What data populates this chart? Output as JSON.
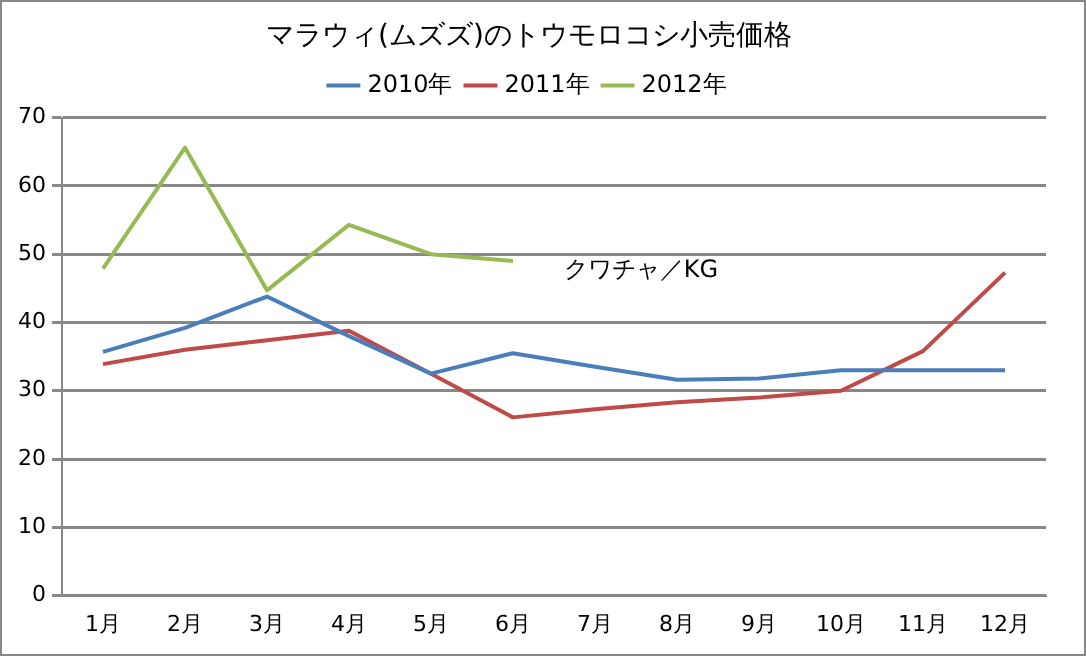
{
  "chart_data": {
    "type": "line",
    "title": "マラウィ(ムズズ)のトウモロコシ小売価格",
    "categories": [
      "1月",
      "2月",
      "3月",
      "4月",
      "5月",
      "6月",
      "7月",
      "8月",
      "9月",
      "10月",
      "11月",
      "12月"
    ],
    "series": [
      {
        "name": "2010年",
        "color": "#4a7ebb",
        "values": [
          35.7,
          39.2,
          43.8,
          38,
          32.5,
          35.5,
          33.5,
          31.6,
          31.8,
          33,
          33,
          33
        ]
      },
      {
        "name": "2011年",
        "color": "#be4b48",
        "values": [
          33.9,
          36,
          37.4,
          38.8,
          32.5,
          26.1,
          27.3,
          28.3,
          29,
          30,
          35.8,
          47.3
        ]
      },
      {
        "name": "2012年",
        "color": "#98b954",
        "values": [
          47.9,
          65.6,
          44.7,
          54.3,
          50,
          49,
          null,
          null,
          null,
          null,
          null,
          null
        ]
      }
    ],
    "ylim": [
      0,
      70
    ],
    "yticks": [
      0,
      10,
      20,
      30,
      40,
      50,
      60,
      70
    ],
    "grid": "y",
    "legend": "top",
    "marker": "none",
    "line_style": "solid",
    "annotations": [
      "クワチャ／KG"
    ]
  }
}
